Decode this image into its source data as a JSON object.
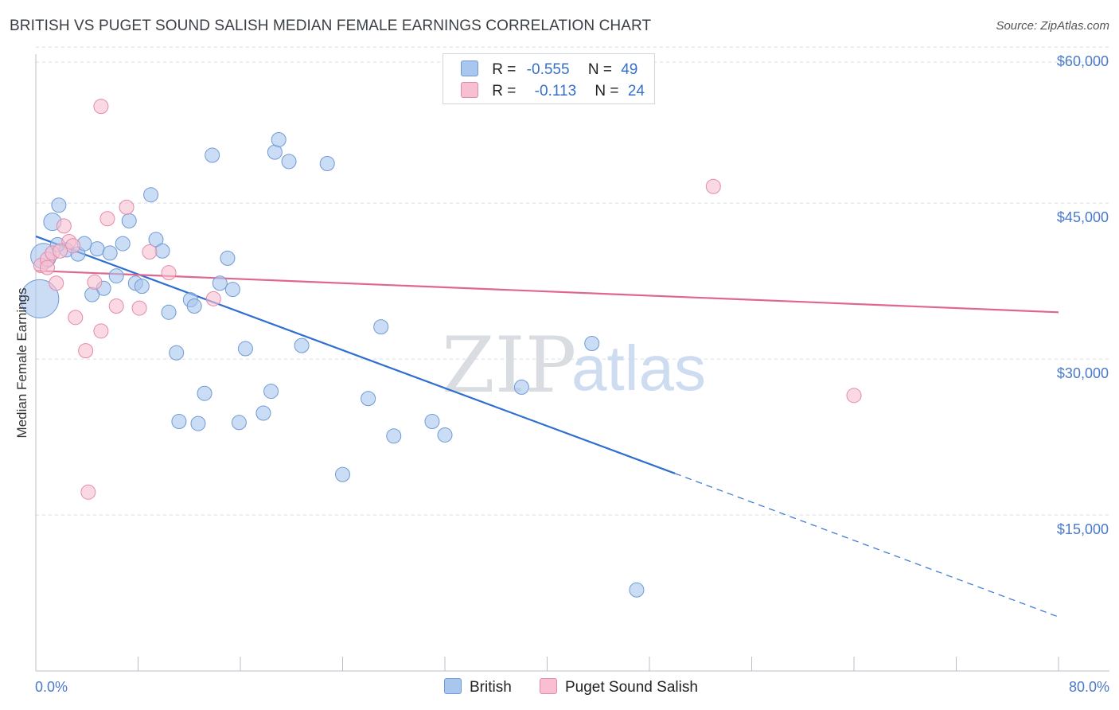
{
  "header": {
    "title": "BRITISH VS PUGET SOUND SALISH MEDIAN FEMALE EARNINGS CORRELATION CHART",
    "source": "Source: ZipAtlas.com"
  },
  "legend": {
    "rows": [
      {
        "r_label": "R =",
        "r_value": "-0.555",
        "n_label": "N =",
        "n_value": "49"
      },
      {
        "r_label": "R =",
        "r_value": "-0.113",
        "n_label": "N =",
        "n_value": "24"
      }
    ]
  },
  "bottom_legend": {
    "british": "British",
    "salish": "Puget Sound Salish"
  },
  "watermark": {
    "zip": "ZIP",
    "atlas": "atlas"
  },
  "colors": {
    "british_fill": "#a9c7ee",
    "british_stroke": "#6f9ad6",
    "british_line": "#2f6fd0",
    "salish_fill": "#f7bfd0",
    "salish_stroke": "#e48aa8",
    "salish_line": "#e06690",
    "grid": "#d8dde3",
    "tick_label": "#4a7ac9"
  },
  "chart_data": {
    "type": "scatter",
    "title": "BRITISH VS PUGET SOUND SALISH MEDIAN FEMALE EARNINGS CORRELATION CHART",
    "xlabel": "",
    "ylabel": "Median Female Earnings",
    "xlim": [
      0,
      80
    ],
    "ylim": [
      0,
      63000
    ],
    "x_tick_labels": [
      "0.0%",
      "80.0%"
    ],
    "y_ticks": [
      15000,
      30000,
      45000,
      60000
    ],
    "y_tick_labels": [
      "$15,000",
      "$30,000",
      "$45,000",
      "$60,000"
    ],
    "grid": true,
    "legend_position": "top-center",
    "series": [
      {
        "name": "British",
        "r": -0.555,
        "n": 49,
        "trend": {
          "x0": 0,
          "y0": 41800,
          "x1": 50,
          "y1": 19000,
          "dashed_to_x": 80,
          "dashed_to_y": 5200
        },
        "points": [
          [
            0.3,
            35800,
            24
          ],
          [
            0.6,
            39900,
            16
          ],
          [
            1.3,
            43200,
            11
          ],
          [
            1.8,
            44800,
            9
          ],
          [
            2.4,
            40500,
            9
          ],
          [
            3.3,
            40100,
            9
          ],
          [
            4.8,
            40600,
            9
          ],
          [
            3.8,
            41100,
            9
          ],
          [
            5.8,
            40200,
            9
          ],
          [
            5.3,
            36800,
            9
          ],
          [
            4.4,
            36200,
            9
          ],
          [
            6.3,
            38000,
            9
          ],
          [
            6.8,
            41100,
            9
          ],
          [
            7.3,
            43300,
            9
          ],
          [
            7.8,
            37300,
            9
          ],
          [
            8.3,
            37000,
            9
          ],
          [
            9.0,
            45800,
            9
          ],
          [
            9.4,
            41500,
            9
          ],
          [
            9.9,
            40400,
            9
          ],
          [
            10.4,
            34500,
            9
          ],
          [
            11.0,
            30600,
            9
          ],
          [
            11.2,
            24000,
            9
          ],
          [
            12.1,
            35700,
            9
          ],
          [
            12.4,
            35100,
            9
          ],
          [
            12.7,
            23800,
            9
          ],
          [
            13.2,
            26700,
            9
          ],
          [
            13.8,
            49600,
            9
          ],
          [
            14.4,
            37300,
            9
          ],
          [
            15.0,
            39700,
            9
          ],
          [
            15.4,
            36700,
            9
          ],
          [
            15.9,
            23900,
            9
          ],
          [
            16.4,
            31000,
            9
          ],
          [
            17.8,
            24800,
            9
          ],
          [
            18.4,
            26900,
            9
          ],
          [
            18.7,
            49900,
            9
          ],
          [
            19.0,
            51100,
            9
          ],
          [
            19.8,
            49000,
            9
          ],
          [
            20.8,
            31300,
            9
          ],
          [
            22.8,
            48800,
            9
          ],
          [
            24.0,
            18900,
            9
          ],
          [
            26.0,
            26200,
            9
          ],
          [
            27.0,
            33100,
            9
          ],
          [
            28.0,
            22600,
            9
          ],
          [
            31.0,
            24000,
            9
          ],
          [
            32.0,
            22700,
            9
          ],
          [
            38.0,
            27300,
            9
          ],
          [
            43.5,
            31500,
            9
          ],
          [
            47.0,
            7800,
            9
          ],
          [
            1.7,
            41000,
            9
          ]
        ]
      },
      {
        "name": "Puget Sound Salish",
        "r": -0.113,
        "n": 24,
        "trend": {
          "x0": 0,
          "y0": 38500,
          "x1": 80,
          "y1": 34500
        },
        "points": [
          [
            0.4,
            39000,
            9
          ],
          [
            0.9,
            39600,
            9
          ],
          [
            1.3,
            40200,
            9
          ],
          [
            1.6,
            37300,
            9
          ],
          [
            2.2,
            42800,
            9
          ],
          [
            2.6,
            41300,
            9
          ],
          [
            2.9,
            40900,
            9
          ],
          [
            3.1,
            34000,
            9
          ],
          [
            3.9,
            30800,
            9
          ],
          [
            4.1,
            17200,
            9
          ],
          [
            4.6,
            37400,
            9
          ],
          [
            5.1,
            32700,
            9
          ],
          [
            5.1,
            54300,
            9
          ],
          [
            5.6,
            43500,
            9
          ],
          [
            6.3,
            35100,
            9
          ],
          [
            7.1,
            44600,
            9
          ],
          [
            8.1,
            34900,
            9
          ],
          [
            8.9,
            40300,
            9
          ],
          [
            10.4,
            38300,
            9
          ],
          [
            13.9,
            35800,
            9
          ],
          [
            53.0,
            46600,
            9
          ],
          [
            64.0,
            26500,
            9
          ],
          [
            0.9,
            38800,
            9
          ],
          [
            1.9,
            40400,
            9
          ]
        ]
      }
    ]
  }
}
